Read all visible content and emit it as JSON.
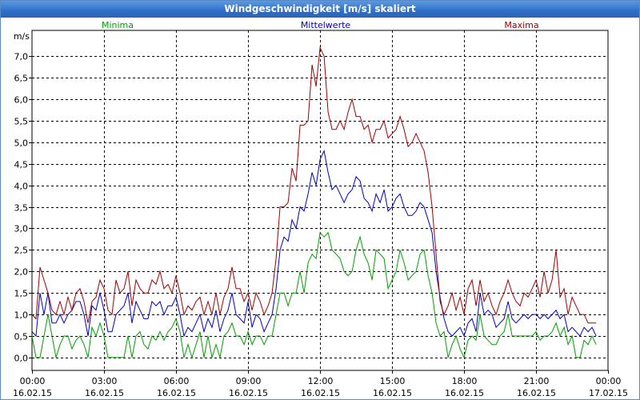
{
  "window": {
    "title": "Windgeschwindigkeit [m/s] skaliert"
  },
  "chart_data": {
    "type": "line",
    "title": "Windgeschwindigkeit [m/s] skaliert",
    "ylabel": "m/s",
    "xlabel": "",
    "ylim": [
      -0.3,
      7.6
    ],
    "xlim": [
      0,
      24
    ],
    "grid": true,
    "legend_position": "top",
    "yticks": [
      {
        "value": 0.0,
        "label": "0,0"
      },
      {
        "value": 0.5,
        "label": "0,5"
      },
      {
        "value": 1.0,
        "label": "1,0"
      },
      {
        "value": 1.5,
        "label": "1,5"
      },
      {
        "value": 2.0,
        "label": "2,0"
      },
      {
        "value": 2.5,
        "label": "2,5"
      },
      {
        "value": 3.0,
        "label": "3,0"
      },
      {
        "value": 3.5,
        "label": "3,5"
      },
      {
        "value": 4.0,
        "label": "4,0"
      },
      {
        "value": 4.5,
        "label": "4,5"
      },
      {
        "value": 5.0,
        "label": "5,0"
      },
      {
        "value": 5.5,
        "label": "5,5"
      },
      {
        "value": 6.0,
        "label": "6,0"
      },
      {
        "value": 6.5,
        "label": "6,5"
      },
      {
        "value": 7.0,
        "label": "7,0"
      }
    ],
    "xticks": [
      {
        "value": 0,
        "time": "00:00",
        "date": "16.02.15"
      },
      {
        "value": 3,
        "time": "03:00",
        "date": "16.02.15"
      },
      {
        "value": 6,
        "time": "06:00",
        "date": "16.02.15"
      },
      {
        "value": 9,
        "time": "09:00",
        "date": "16.02.15"
      },
      {
        "value": 12,
        "time": "12:00",
        "date": "16.02.15"
      },
      {
        "value": 15,
        "time": "15:00",
        "date": "16.02.15"
      },
      {
        "value": 18,
        "time": "18:00",
        "date": "16.02.15"
      },
      {
        "value": 21,
        "time": "21:00",
        "date": "16.02.15"
      },
      {
        "value": 24,
        "time": "00:00",
        "date": "17.02.15"
      }
    ],
    "series": [
      {
        "name": "Minima",
        "color": "#00a000",
        "x_step": 0.1667,
        "values": [
          0.5,
          0.0,
          0.0,
          0.5,
          1.0,
          0.5,
          0.0,
          0.3,
          0.5,
          0.5,
          0.2,
          0.4,
          0.5,
          0.3,
          0.0,
          0.7,
          0.5,
          0.8,
          0.5,
          0.0,
          0.0,
          0.0,
          0.0,
          0.0,
          0.5,
          0.0,
          0.5,
          0.6,
          0.3,
          0.2,
          0.5,
          0.4,
          0.6,
          0.4,
          0.6,
          0.7,
          0.9,
          0.6,
          0.0,
          0.3,
          0.0,
          0.3,
          0.6,
          0.0,
          0.5,
          0.0,
          0.3,
          0.0,
          0.5,
          0.6,
          0.8,
          0.5,
          0.5,
          0.3,
          0.6,
          0.3,
          0.5,
          0.5,
          0.3,
          0.5,
          0.5,
          1.0,
          1.5,
          1.5,
          1.2,
          1.5,
          1.5,
          2.0,
          1.5,
          2.2,
          2.4,
          2.3,
          2.9,
          2.8,
          2.9,
          2.5,
          2.4,
          2.3,
          2.0,
          1.9,
          2.0,
          2.5,
          2.8,
          2.4,
          2.2,
          1.8,
          2.5,
          2.4,
          2.3,
          1.6,
          1.8,
          2.0,
          2.5,
          2.2,
          1.8,
          1.9,
          2.0,
          2.4,
          2.5,
          1.9,
          1.5,
          0.8,
          0.5,
          0.6,
          0.0,
          0.3,
          0.5,
          0.2,
          0.0,
          0.4,
          0.5,
          0.4,
          1.0,
          0.5,
          0.4,
          0.3,
          0.3,
          0.5,
          0.6,
          1.0,
          0.5,
          0.5,
          0.5,
          0.5,
          0.5,
          0.5,
          0.6,
          0.4,
          0.5,
          0.5,
          0.6,
          0.8,
          0.5,
          0.7,
          0.3,
          0.5,
          0.0,
          0.0,
          0.4,
          0.3,
          0.5,
          0.3
        ]
      },
      {
        "name": "Mittelwerte",
        "color": "#0000c0",
        "x_step": 0.1667,
        "values": [
          0.6,
          0.5,
          1.5,
          1.0,
          1.5,
          0.8,
          0.8,
          1.0,
          0.8,
          1.0,
          1.1,
          1.3,
          1.3,
          1.0,
          0.5,
          1.2,
          1.1,
          1.5,
          1.1,
          0.6,
          0.6,
          1.0,
          1.1,
          1.2,
          1.5,
          0.8,
          1.3,
          1.1,
          0.9,
          0.9,
          1.3,
          1.2,
          1.3,
          1.0,
          1.2,
          1.2,
          1.4,
          1.0,
          0.5,
          0.7,
          0.6,
          0.8,
          1.0,
          0.6,
          0.9,
          0.7,
          1.1,
          0.6,
          0.9,
          1.1,
          1.5,
          1.0,
          0.9,
          0.8,
          1.3,
          0.7,
          1.0,
          0.9,
          0.6,
          0.8,
          1.0,
          1.6,
          2.5,
          2.8,
          2.7,
          3.2,
          3.0,
          3.5,
          3.4,
          3.8,
          4.3,
          4.0,
          4.6,
          4.8,
          4.3,
          3.9,
          4.0,
          3.8,
          3.6,
          3.8,
          3.9,
          4.2,
          4.1,
          3.7,
          3.6,
          3.4,
          3.8,
          3.6,
          3.9,
          3.4,
          3.5,
          3.7,
          3.8,
          3.5,
          3.3,
          3.3,
          3.4,
          3.6,
          3.5,
          3.2,
          2.9,
          2.0,
          1.4,
          0.9,
          0.6,
          0.5,
          0.6,
          0.7,
          0.5,
          0.8,
          0.9,
          0.6,
          1.5,
          1.0,
          1.1,
          1.0,
          0.7,
          0.8,
          0.9,
          1.3,
          0.9,
          0.8,
          0.9,
          1.0,
          0.9,
          1.0,
          1.0,
          0.9,
          1.0,
          0.9,
          1.0,
          1.1,
          0.9,
          1.0,
          0.6,
          0.7,
          0.6,
          0.5,
          0.7,
          0.6,
          0.7,
          0.5
        ]
      },
      {
        "name": "Maxima",
        "color": "#a00000",
        "x_step": 0.1667,
        "values": [
          1.0,
          0.9,
          2.1,
          1.8,
          1.5,
          1.1,
          1.0,
          1.3,
          1.0,
          1.4,
          1.1,
          1.5,
          1.6,
          1.3,
          0.8,
          1.3,
          1.4,
          1.8,
          1.6,
          1.1,
          1.0,
          1.8,
          1.5,
          1.6,
          2.0,
          1.2,
          1.8,
          1.6,
          1.5,
          1.5,
          1.8,
          1.7,
          2.0,
          1.6,
          1.7,
          1.5,
          1.9,
          1.5,
          1.0,
          1.2,
          1.1,
          1.3,
          1.4,
          1.0,
          1.3,
          1.0,
          1.5,
          1.0,
          1.4,
          1.6,
          2.1,
          1.6,
          1.6,
          1.3,
          1.5,
          1.1,
          1.5,
          1.3,
          1.0,
          1.2,
          1.5,
          2.3,
          3.5,
          3.5,
          3.6,
          4.4,
          4.1,
          5.4,
          5.4,
          5.5,
          6.8,
          6.3,
          7.2,
          7.0,
          5.7,
          5.3,
          5.3,
          5.5,
          5.3,
          5.7,
          6.0,
          5.6,
          5.6,
          5.3,
          5.4,
          5.0,
          5.3,
          5.3,
          5.5,
          5.1,
          5.2,
          5.3,
          5.6,
          5.3,
          4.9,
          5.0,
          5.2,
          5.0,
          4.8,
          4.3,
          3.5,
          2.4,
          1.3,
          1.0,
          1.2,
          1.5,
          1.1,
          1.4,
          1.0,
          1.6,
          1.8,
          1.2,
          1.8,
          1.3,
          1.5,
          1.2,
          1.0,
          1.3,
          1.5,
          1.8,
          1.5,
          1.3,
          1.2,
          1.5,
          1.4,
          1.6,
          1.8,
          1.4,
          2.0,
          1.5,
          1.8,
          2.5,
          1.4,
          1.6,
          1.0,
          1.4,
          1.2,
          1.0,
          1.0,
          0.8,
          0.8,
          0.8
        ]
      }
    ]
  }
}
